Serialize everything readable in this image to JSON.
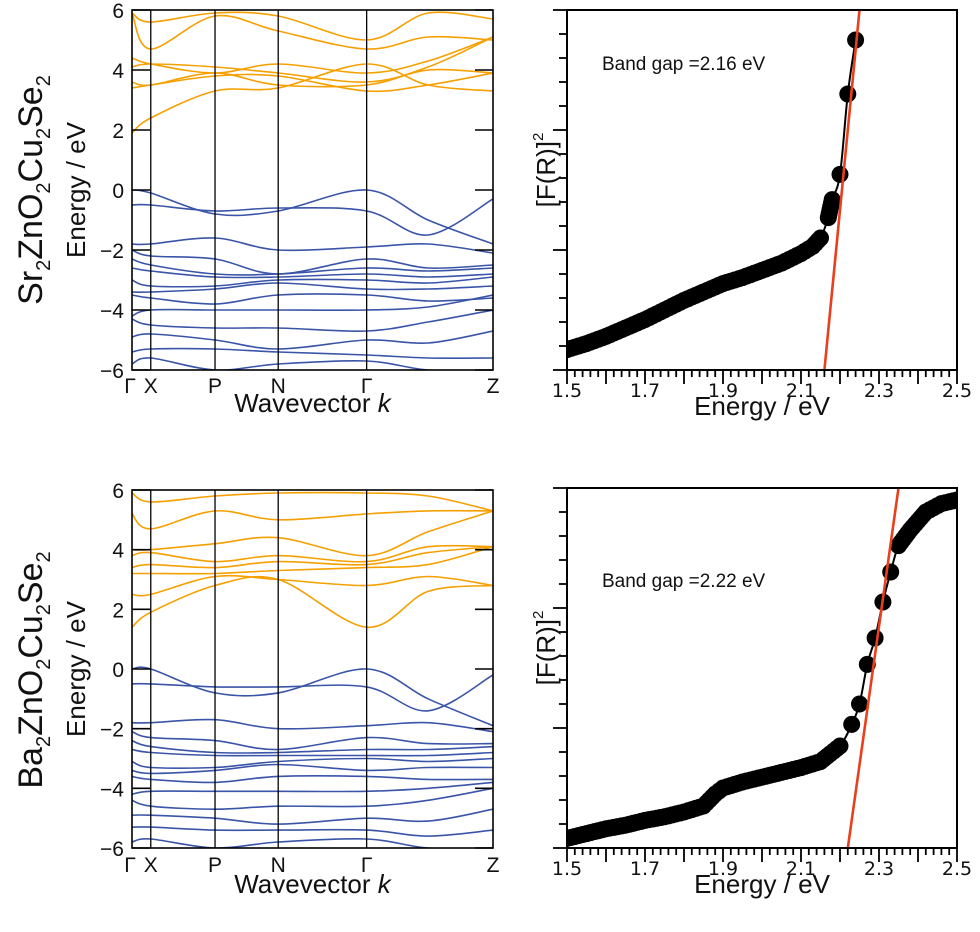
{
  "chart_data": [
    {
      "type": "line",
      "panel": "top-left",
      "compound": {
        "base": [
          "Sr",
          "ZnO",
          "Cu",
          "Se",
          ""
        ],
        "subs": [
          "2",
          "2",
          "2",
          "2"
        ]
      },
      "title": "",
      "xlabel": "Wavevector",
      "xlabel_italic": "k",
      "ylabel": "Energy / eV",
      "ylim": [
        -6,
        6
      ],
      "yticks": [
        -6,
        -4,
        -2,
        0,
        2,
        4,
        6
      ],
      "ytick_labels": [
        "−6",
        "−4",
        "−2",
        "0",
        "2",
        "4",
        "6"
      ],
      "kpath": [
        {
          "label": "Γ",
          "k": 0.0
        },
        {
          "label": "X",
          "k": 0.052
        },
        {
          "label": "P",
          "k": 0.23
        },
        {
          "label": "N",
          "k": 0.405
        },
        {
          "label": "Γ",
          "k": 0.65
        },
        {
          "label": "Z",
          "k": 1.0
        }
      ],
      "series": [
        {
          "name": "conduction bands",
          "color": "#F5A000",
          "cbm_at_gamma": 1.9,
          "bands": [
            [
              1.9,
              2.4,
              3.3,
              3.4,
              4.2,
              3.5,
              3.3
            ],
            [
              3.4,
              3.5,
              3.8,
              3.8,
              3.3,
              3.5,
              3.9
            ],
            [
              3.6,
              3.5,
              3.9,
              3.5,
              3.5,
              4.0,
              3.9
            ],
            [
              4.1,
              4.2,
              4.1,
              3.9,
              3.6,
              4.1,
              5.1
            ],
            [
              4.4,
              4.2,
              3.9,
              4.2,
              3.9,
              4.3,
              5.1
            ],
            [
              5.9,
              4.7,
              5.8,
              5.3,
              4.7,
              5.1,
              5.0
            ],
            [
              5.9,
              5.6,
              5.9,
              5.8,
              5.0,
              5.9,
              5.7
            ]
          ]
        },
        {
          "name": "valence bands",
          "color": "#3A55A8",
          "vbm_at_gamma": 0.0,
          "bands": [
            [
              0.0,
              -0.1,
              -0.8,
              -0.7,
              0.0,
              -1.0,
              -1.8
            ],
            [
              -0.5,
              -0.5,
              -0.7,
              -0.6,
              -0.7,
              -1.5,
              -0.3
            ],
            [
              -1.8,
              -1.8,
              -1.6,
              -2.0,
              -1.9,
              -1.8,
              -2.1
            ],
            [
              -2.0,
              -2.2,
              -2.3,
              -2.8,
              -2.3,
              -2.6,
              -2.5
            ],
            [
              -2.3,
              -2.5,
              -2.8,
              -2.8,
              -2.6,
              -2.7,
              -2.6
            ],
            [
              -2.6,
              -2.7,
              -2.9,
              -2.9,
              -2.8,
              -2.9,
              -2.8
            ],
            [
              -3.0,
              -3.2,
              -3.2,
              -3.0,
              -3.0,
              -3.1,
              -2.9
            ],
            [
              -3.4,
              -3.4,
              -3.3,
              -3.1,
              -3.3,
              -3.3,
              -3.2
            ],
            [
              -3.5,
              -3.6,
              -3.8,
              -3.5,
              -3.5,
              -3.7,
              -3.6
            ],
            [
              -4.2,
              -4.0,
              -4.0,
              -4.0,
              -4.0,
              -3.9,
              -3.5
            ],
            [
              -4.3,
              -4.5,
              -4.6,
              -4.6,
              -4.7,
              -4.4,
              -4.0
            ],
            [
              -4.9,
              -4.8,
              -5.0,
              -5.3,
              -5.0,
              -5.1,
              -4.7
            ],
            [
              -5.4,
              -5.3,
              -5.3,
              -5.4,
              -5.5,
              -5.6,
              -5.6
            ],
            [
              -5.8,
              -5.6,
              -6.0,
              -5.8,
              -5.7,
              -6.0,
              -6.0
            ]
          ]
        }
      ]
    },
    {
      "type": "scatter",
      "panel": "top-right",
      "title": "",
      "xlabel": "Energy / eV",
      "ylabel": "[F(R)]",
      "ylabel_sup": "2",
      "xlim": [
        1.5,
        2.5
      ],
      "xticks": [
        1.5,
        1.7,
        1.9,
        2.1,
        2.3,
        2.5
      ],
      "xtick_labels": [
        "1.5",
        "1.7",
        "1.9",
        "2.1",
        "2.3",
        "2.5"
      ],
      "ylim": [
        0,
        3
      ],
      "y_units": "arbitrary",
      "annotation": "Band gap =2.16 eV",
      "band_gap_eV": 2.16,
      "series": [
        {
          "name": "measured",
          "color": "#000000",
          "x": [
            1.5,
            1.55,
            1.6,
            1.65,
            1.7,
            1.75,
            1.8,
            1.85,
            1.9,
            1.95,
            2.0,
            2.05,
            2.1,
            2.13,
            2.15,
            2.17,
            2.18,
            2.2,
            2.22,
            2.24
          ],
          "y": [
            0.17,
            0.22,
            0.28,
            0.35,
            0.42,
            0.5,
            0.58,
            0.65,
            0.72,
            0.77,
            0.83,
            0.89,
            0.97,
            1.03,
            1.1,
            1.27,
            1.42,
            1.63,
            2.3,
            2.75
          ]
        },
        {
          "name": "linear fit",
          "color": "#E8401C",
          "x": [
            2.16,
            2.25
          ],
          "y": [
            0,
            3.0
          ]
        }
      ]
    },
    {
      "type": "line",
      "panel": "bottom-left",
      "compound": {
        "base": [
          "Ba",
          "ZnO",
          "Cu",
          "Se",
          ""
        ],
        "subs": [
          "2",
          "2",
          "2",
          "2"
        ]
      },
      "title": "",
      "xlabel": "Wavevector",
      "xlabel_italic": "k",
      "ylabel": "Energy / eV",
      "ylim": [
        -6,
        6
      ],
      "yticks": [
        -6,
        -4,
        -2,
        0,
        2,
        4,
        6
      ],
      "ytick_labels": [
        "−6",
        "−4",
        "−2",
        "0",
        "2",
        "4",
        "6"
      ],
      "kpath": [
        {
          "label": "Γ",
          "k": 0.0
        },
        {
          "label": "X",
          "k": 0.052
        },
        {
          "label": "P",
          "k": 0.23
        },
        {
          "label": "N",
          "k": 0.405
        },
        {
          "label": "Γ",
          "k": 0.65
        },
        {
          "label": "Z",
          "k": 1.0
        }
      ],
      "series": [
        {
          "name": "conduction bands",
          "color": "#F5A000",
          "cbm_at_gamma": 1.4,
          "bands": [
            [
              1.4,
              1.9,
              2.8,
              3.0,
              1.4,
              2.6,
              2.8
            ],
            [
              2.5,
              2.5,
              3.1,
              3.0,
              2.8,
              3.1,
              2.8
            ],
            [
              3.2,
              3.2,
              3.2,
              3.3,
              3.4,
              3.5,
              4.1
            ],
            [
              3.4,
              3.5,
              3.4,
              3.6,
              3.5,
              3.9,
              4.1
            ],
            [
              3.8,
              3.9,
              3.6,
              3.8,
              3.6,
              4.1,
              4.1
            ],
            [
              4.0,
              4.0,
              4.2,
              4.4,
              3.8,
              4.6,
              5.3
            ],
            [
              5.2,
              4.7,
              5.3,
              5.0,
              5.2,
              5.3,
              5.3
            ],
            [
              5.9,
              5.6,
              5.8,
              5.9,
              5.9,
              5.8,
              5.3
            ]
          ]
        },
        {
          "name": "valence bands",
          "color": "#3A55A8",
          "vbm_at_gamma": 0.0,
          "bands": [
            [
              0.0,
              0.0,
              -0.8,
              -0.8,
              0.0,
              -1.0,
              -1.9
            ],
            [
              -0.5,
              -0.5,
              -0.6,
              -0.6,
              -0.6,
              -1.4,
              -0.2
            ],
            [
              -1.8,
              -1.8,
              -1.7,
              -2.0,
              -1.9,
              -1.8,
              -2.1
            ],
            [
              -2.1,
              -2.3,
              -2.4,
              -2.7,
              -2.3,
              -2.5,
              -2.5
            ],
            [
              -2.4,
              -2.6,
              -2.8,
              -2.8,
              -2.7,
              -2.7,
              -2.6
            ],
            [
              -2.7,
              -2.8,
              -2.9,
              -2.9,
              -2.9,
              -2.9,
              -2.8
            ],
            [
              -3.1,
              -3.3,
              -3.3,
              -3.1,
              -3.0,
              -3.1,
              -3.0
            ],
            [
              -3.4,
              -3.5,
              -3.4,
              -3.2,
              -3.4,
              -3.3,
              -3.3
            ],
            [
              -3.6,
              -3.7,
              -3.8,
              -3.6,
              -3.6,
              -3.7,
              -3.7
            ],
            [
              -4.2,
              -4.1,
              -4.1,
              -4.1,
              -4.1,
              -4.0,
              -3.8
            ],
            [
              -4.4,
              -4.6,
              -4.7,
              -4.6,
              -4.6,
              -4.4,
              -4.0
            ],
            [
              -4.9,
              -4.9,
              -5.0,
              -5.2,
              -5.0,
              -5.1,
              -4.7
            ],
            [
              -5.3,
              -5.3,
              -5.4,
              -5.4,
              -5.4,
              -5.6,
              -5.4
            ],
            [
              -5.8,
              -5.7,
              -6.0,
              -5.8,
              -5.7,
              -6.0,
              -6.0
            ]
          ]
        }
      ]
    },
    {
      "type": "scatter",
      "panel": "bottom-right",
      "title": "",
      "xlabel": "Energy / eV",
      "ylabel": "[F(R)]",
      "ylabel_sup": "2",
      "xlim": [
        1.5,
        2.5
      ],
      "xticks": [
        1.5,
        1.7,
        1.9,
        2.1,
        2.3,
        2.5
      ],
      "xtick_labels": [
        "1.5",
        "1.7",
        "1.9",
        "2.1",
        "2.3",
        "2.5"
      ],
      "ylim": [
        0,
        3
      ],
      "y_units": "arbitrary",
      "annotation": "Band gap =2.22 eV",
      "band_gap_eV": 2.22,
      "series": [
        {
          "name": "measured",
          "color": "#000000",
          "x": [
            1.5,
            1.55,
            1.6,
            1.65,
            1.7,
            1.75,
            1.8,
            1.85,
            1.88,
            1.9,
            1.95,
            2.0,
            2.05,
            2.1,
            2.15,
            2.2,
            2.23,
            2.25,
            2.27,
            2.29,
            2.31,
            2.33,
            2.35,
            2.38,
            2.42,
            2.46,
            2.5
          ],
          "y": [
            0.08,
            0.12,
            0.16,
            0.19,
            0.23,
            0.26,
            0.3,
            0.35,
            0.45,
            0.5,
            0.55,
            0.59,
            0.63,
            0.67,
            0.72,
            0.85,
            1.03,
            1.2,
            1.53,
            1.75,
            2.05,
            2.3,
            2.52,
            2.65,
            2.8,
            2.87,
            2.9
          ]
        },
        {
          "name": "linear fit",
          "color": "#E8401C",
          "x": [
            2.22,
            2.35
          ],
          "y": [
            0,
            3.0
          ]
        }
      ]
    }
  ]
}
